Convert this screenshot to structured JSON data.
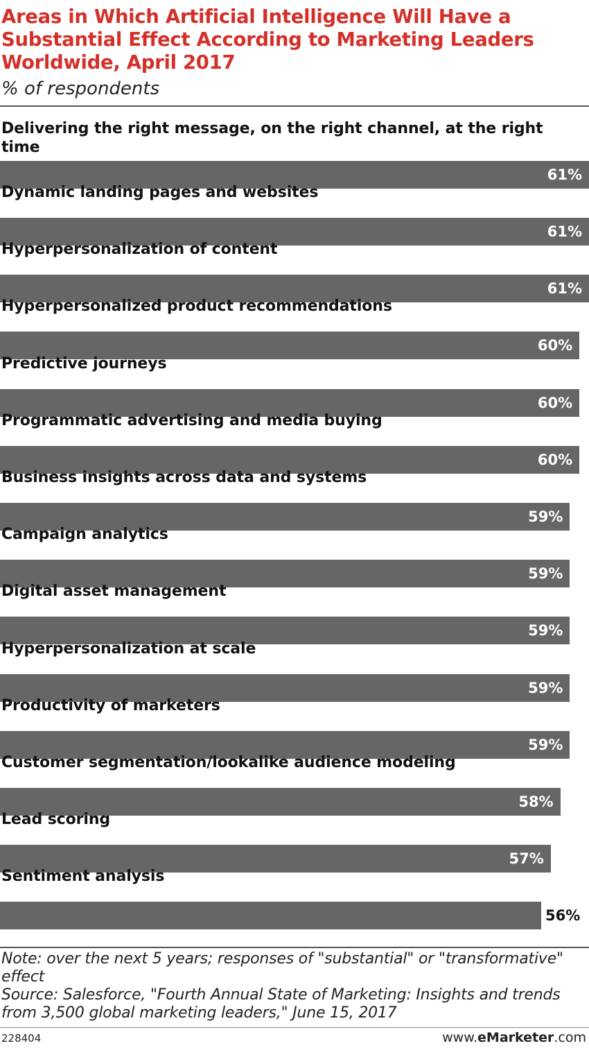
{
  "header": {
    "title": "Areas in Which Artificial Intelligence Will Have a Substantial Effect According to Marketing Leaders Worldwide, April 2017",
    "subtitle": "% of respondents"
  },
  "chart_data": {
    "type": "bar",
    "orientation": "horizontal",
    "unit": "%",
    "categories": [
      "Delivering the right message, on the right channel, at the right time",
      "Dynamic landing pages and websites",
      "Hyperpersonalization of content",
      "Hyperpersonalized product recommendations",
      "Predictive journeys",
      "Programmatic advertising and media buying",
      "Business insights across data and systems",
      "Campaign analytics",
      "Digital asset management",
      "Hyperpersonalization at scale",
      "Productivity of marketers",
      "Customer segmentation/lookalike audience modeling",
      "Lead scoring",
      "Sentiment analysis"
    ],
    "values": [
      61,
      61,
      61,
      60,
      60,
      60,
      59,
      59,
      59,
      59,
      59,
      58,
      57,
      56
    ],
    "value_labels": [
      "61%",
      "61%",
      "61%",
      "60%",
      "60%",
      "60%",
      "59%",
      "59%",
      "59%",
      "59%",
      "59%",
      "58%",
      "57%",
      "56%"
    ],
    "bar_color": "#666666",
    "grid": false,
    "legend": "none"
  },
  "footer": {
    "note": "Note: over the next 5 years; responses of \"substantial\" or \"transformative\" effect",
    "source": "Source: Salesforce, \"Fourth Annual State of Marketing: Insights and trends from 3,500 global marketing leaders,\" June 15, 2017",
    "chart_id": "228404",
    "brand_prefix": "www.",
    "brand_name": "eMarketer",
    "brand_suffix": ".com"
  },
  "colors": {
    "title": "#d4302a",
    "bar": "#666666",
    "value_inside": "#ffffff",
    "value_outside": "#111111"
  }
}
